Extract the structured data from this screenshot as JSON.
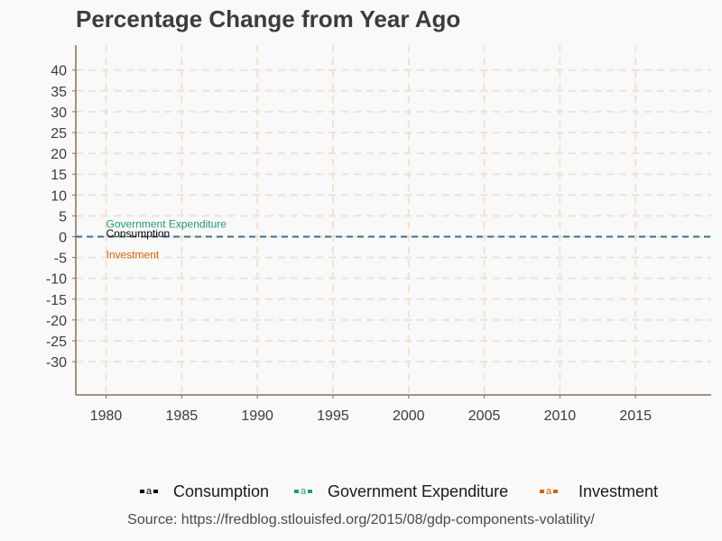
{
  "chart_data": {
    "type": "line",
    "title": "Percentage Change from Year Ago",
    "xlabel": "",
    "ylabel": "",
    "xlim": [
      1978,
      2020
    ],
    "ylim": [
      -38,
      46
    ],
    "x_ticks": [
      1980,
      1985,
      1990,
      1995,
      2000,
      2005,
      2010,
      2015
    ],
    "y_ticks": [
      -30,
      -25,
      -20,
      -15,
      -10,
      -5,
      0,
      5,
      10,
      15,
      20,
      25,
      30,
      35,
      40
    ],
    "grid": true,
    "reference_line": {
      "y": 0,
      "style": "dashed",
      "color": "#3b6e8f"
    },
    "series": [
      {
        "name": "Consumption",
        "color": "#000000",
        "values": []
      },
      {
        "name": "Government Expenditure",
        "color": "#1b9e77",
        "values": []
      },
      {
        "name": "Investment",
        "color": "#d95f02",
        "values": []
      }
    ],
    "annotations": [
      {
        "text": "Government Expenditure",
        "x": 1980,
        "y": 3,
        "color": "#1b9e77"
      },
      {
        "text": "Consumption",
        "x": 1980,
        "y": 0.7,
        "color": "#000000"
      },
      {
        "text": "Investment",
        "x": 1980,
        "y": -4.3,
        "color": "#d95f02"
      }
    ],
    "legend_position": "bottom",
    "source": "Source: https://fredblog.stlouisfed.org/2015/08/gdp-components-volatility/"
  },
  "legend": {
    "glyph": "a",
    "items": [
      {
        "label": "Consumption",
        "color": "#000000"
      },
      {
        "label": "Government Expenditure",
        "color": "#1b9e77"
      },
      {
        "label": "Investment",
        "color": "#d95f02"
      }
    ]
  },
  "colors": {
    "background": "#f9f9f9",
    "grid": "#f0e2d2",
    "axis": "#8b6f55",
    "tick_text": "#3c3c3c",
    "zero_line": "#3b6e8f"
  }
}
